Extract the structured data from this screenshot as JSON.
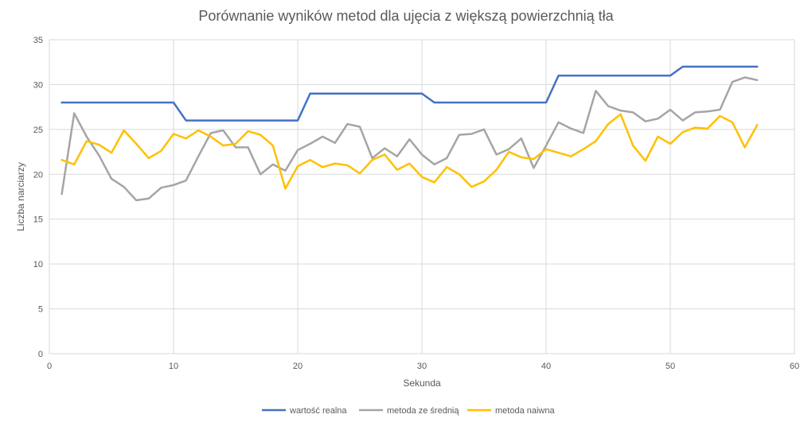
{
  "chart_data": {
    "type": "line",
    "title": "Porównanie wyników metod dla ujęcia z większą powierzchnią tła",
    "xlabel": "Sekunda",
    "ylabel": "Liczba narciarzy",
    "xlim": [
      0,
      60
    ],
    "ylim": [
      0,
      35
    ],
    "xticks": [
      0,
      10,
      20,
      30,
      40,
      50,
      60
    ],
    "yticks": [
      0,
      5,
      10,
      15,
      20,
      25,
      30,
      35
    ],
    "grid": true,
    "legend_position": "bottom",
    "x": [
      1,
      2,
      3,
      4,
      5,
      6,
      7,
      8,
      9,
      10,
      11,
      12,
      13,
      14,
      15,
      16,
      17,
      18,
      19,
      20,
      21,
      22,
      23,
      24,
      25,
      26,
      27,
      28,
      29,
      30,
      31,
      32,
      33,
      34,
      35,
      36,
      37,
      38,
      39,
      40,
      41,
      42,
      43,
      44,
      45,
      46,
      47,
      48,
      49,
      50,
      51,
      52,
      53,
      54,
      55,
      56,
      57
    ],
    "series": [
      {
        "name": "wartość realna",
        "color": "#4472C4",
        "values": [
          28,
          28,
          28,
          28,
          28,
          28,
          28,
          28,
          28,
          28,
          26,
          26,
          26,
          26,
          26,
          26,
          26,
          26,
          26,
          26,
          29,
          29,
          29,
          29,
          29,
          29,
          29,
          29,
          29,
          29,
          28,
          28,
          28,
          28,
          28,
          28,
          28,
          28,
          28,
          28,
          31,
          31,
          31,
          31,
          31,
          31,
          31,
          31,
          31,
          31,
          32,
          32,
          32,
          32,
          32,
          32,
          32
        ]
      },
      {
        "name": "metoda ze średnią",
        "color": "#A5A5A5",
        "values": [
          17.8,
          26.8,
          24.2,
          22.1,
          19.5,
          18.6,
          17.1,
          17.3,
          18.5,
          18.8,
          19.3,
          22.0,
          24.6,
          24.9,
          23.0,
          23.0,
          20.0,
          21.1,
          20.4,
          22.7,
          23.4,
          24.2,
          23.5,
          25.6,
          25.3,
          21.8,
          22.9,
          22.0,
          23.9,
          22.2,
          21.1,
          21.8,
          24.4,
          24.5,
          25.0,
          22.2,
          22.8,
          24.0,
          20.7,
          23.2,
          25.8,
          25.1,
          24.6,
          29.3,
          27.6,
          27.1,
          26.9,
          25.9,
          26.2,
          27.2,
          26.0,
          26.9,
          27.0,
          27.2,
          30.3,
          30.8,
          30.5
        ]
      },
      {
        "name": "metoda naiwna",
        "color": "#FFC000",
        "values": [
          21.6,
          21.1,
          23.7,
          23.3,
          22.4,
          24.9,
          23.4,
          21.8,
          22.6,
          24.5,
          24.0,
          24.9,
          24.2,
          23.2,
          23.4,
          24.8,
          24.4,
          23.2,
          18.4,
          20.9,
          21.6,
          20.8,
          21.2,
          21.0,
          20.1,
          21.6,
          22.2,
          20.5,
          21.2,
          19.7,
          19.1,
          20.8,
          20.0,
          18.6,
          19.2,
          20.5,
          22.5,
          21.9,
          21.7,
          22.8,
          22.4,
          22.0,
          22.8,
          23.7,
          25.6,
          26.7,
          23.2,
          21.5,
          24.2,
          23.4,
          24.7,
          25.2,
          25.1,
          26.5,
          25.8,
          23.0,
          25.5
        ]
      }
    ]
  }
}
